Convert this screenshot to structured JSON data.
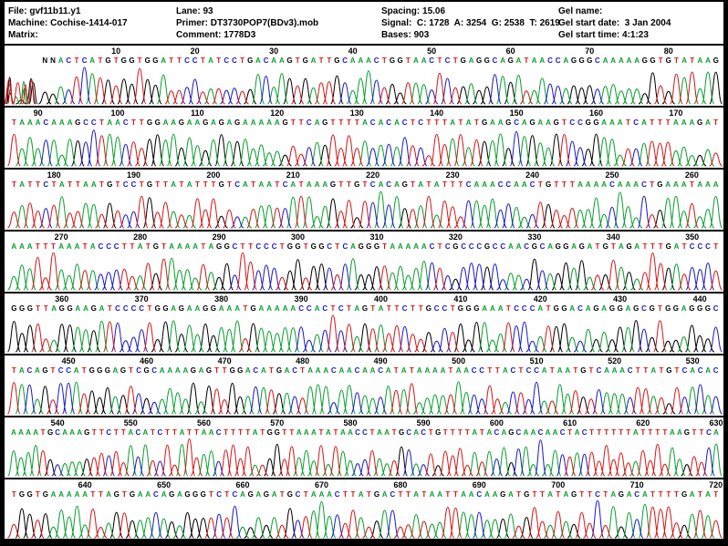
{
  "header": {
    "column1": {
      "file": "File: gvf11b11.y1",
      "machine": "Machine: Cochise-1414-017",
      "matrix": "Matrix:"
    },
    "column2": {
      "lane": "Lane: 93",
      "primer": "Primer: DT3730POP7(BDv3).mob",
      "comment": "Comment: 1778D3"
    },
    "column3": {
      "spacing": "Spacing: 15.06",
      "signal": "Signal:  C: 1728  A: 3254  G: 2538  T: 2619",
      "bases": "Bases: 903"
    },
    "column4": {
      "gel_name": "Gel name:",
      "gel_start_date": "Gel start date:  3 Jan 2004",
      "gel_start_time": "Gel start time: 4:1:23"
    }
  },
  "chart_data": {
    "type": "line",
    "subtype": "dna-sequencing-chromatogram",
    "bases_total": 903,
    "legend": "base call colors: A=green, C=blue, G=black, T=red, N=black",
    "base_colors": {
      "A": "#0a9e2f",
      "C": "#1a1ac8",
      "G": "#000000",
      "T": "#d41717",
      "N": "#000000"
    },
    "panels": [
      {
        "start": 1,
        "indent": 40,
        "sequence": "NNACTCATGTGGTGGATTCCTATCCTGACAAGTGATTGCAAACTGGTAACTCTGAGGCAGATAACCAGGGCAAAAAGGTGTATAAG"
      },
      {
        "start": 87,
        "sequence": "TAAACAAAGCCTAACTTGGAAGAAGAGAGAAAAAGTTCAGTTTTACACACTCTTTATATGAAGCAGAAGTCCGGAAATCATTTAAAGAT"
      },
      {
        "start": 175,
        "sequence": "TATTCTATTAATGTCCTGTTATATTTGTCATAATCATAAAGTTGTCACAGTATATTTCAAACCAACTGTTTAAAACAAACTGAAATAAA"
      },
      {
        "start": 264,
        "sequence": "AAATTTAAATACCCTTATGTAAAATAGGCTTCCCTGGTGGCTCAGGGTAAAAACTCGCCCGCCAACGCAGGAGATGTAGATTTGATCCCT"
      },
      {
        "start": 354,
        "sequence": "GGGTTAGGAAGATCCCCTGGAGAAGGAAATGAAAAACCACTCTAGTATTCTTGCCTGGGAAATCCCATGGACAGAGGAGCGTGGAGGGC"
      },
      {
        "start": 443,
        "sequence": "TACAGTCCATGGGAGTCGCAAAAGAGTTGGACATGACTAAACAACAACATATAAAATAACCTTACTCCATAATGTCAAACTTATGTCACAC"
      },
      {
        "start": 534,
        "sequence": "AAAATGCAAAGTTCTTACATCTTATTAACTTTTATGGTTAAATATAACCTAATGCACTGTTTTATACAGCAACAACTACTTTTTTATTTTAAGTTCA"
      },
      {
        "start": 631,
        "sequence": "TGGTGAAAAATTAGTGAACAGAGGGTCTCAGAGATGCTAAACTTATGACTTATAATTAACAAGATGTTATAGTTCTAGACATTTTGATAT"
      }
    ]
  }
}
